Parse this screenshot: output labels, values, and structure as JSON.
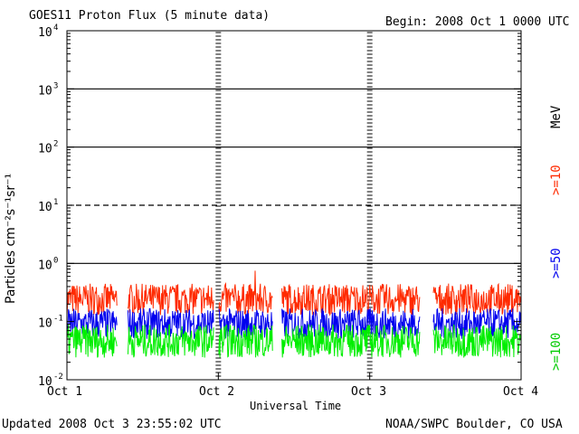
{
  "header": {
    "title": "GOES11 Proton Flux (5 minute data)",
    "begin": "Begin: 2008 Oct 1 0000 UTC"
  },
  "footer": {
    "updated": "Updated 2008 Oct  3 23:55:02 UTC",
    "credit": "NOAA/SWPC Boulder, CO USA"
  },
  "colors": {
    "ch10": "#ff2a00",
    "ch50": "#0000ee",
    "ch100": "#00ee00",
    "axis": "#000000"
  },
  "chart_data": {
    "type": "line",
    "title": "GOES11 Proton Flux (5 minute data)",
    "xlabel": "Universal Time",
    "ylabel": "Particles cm⁻²s⁻¹sr⁻¹",
    "y_scale": "log",
    "ylim": [
      0.01,
      10000
    ],
    "y_ticks": [
      {
        "base": "10",
        "exp": "-2",
        "value": 0.01
      },
      {
        "base": "10",
        "exp": "-1",
        "value": 0.1
      },
      {
        "base": "10",
        "exp": "0",
        "value": 1
      },
      {
        "base": "10",
        "exp": "1",
        "value": 10
      },
      {
        "base": "10",
        "exp": "2",
        "value": 100
      },
      {
        "base": "10",
        "exp": "3",
        "value": 1000
      },
      {
        "base": "10",
        "exp": "4",
        "value": 10000
      }
    ],
    "x_ticks": [
      "Oct 1",
      "Oct 2",
      "Oct 3",
      "Oct 4"
    ],
    "xlim_days": [
      0,
      3
    ],
    "thresholds": [
      {
        "value": 1,
        "style": "solid"
      },
      {
        "value": 10,
        "style": "dashed"
      },
      {
        "value": 100,
        "style": "solid"
      },
      {
        "value": 1000,
        "style": "solid"
      }
    ],
    "gaps_days": [
      [
        0.33,
        0.4
      ],
      [
        0.97,
        1.0
      ],
      [
        1.36,
        1.42
      ],
      [
        2.33,
        2.42
      ]
    ],
    "series": [
      {
        "name": ">=10",
        "color": "#ff2a00",
        "baseline": 0.2,
        "low": 0.13,
        "high": 0.45,
        "spike": 0.75
      },
      {
        "name": ">=50",
        "color": "#0000ee",
        "baseline": 0.095,
        "low": 0.05,
        "high": 0.17
      },
      {
        "name": ">=100",
        "color": "#00ee00",
        "baseline": 0.045,
        "low": 0.024,
        "high": 0.09
      }
    ],
    "right_labels": [
      ">=10",
      ">=50",
      ">=100",
      "MeV"
    ]
  }
}
